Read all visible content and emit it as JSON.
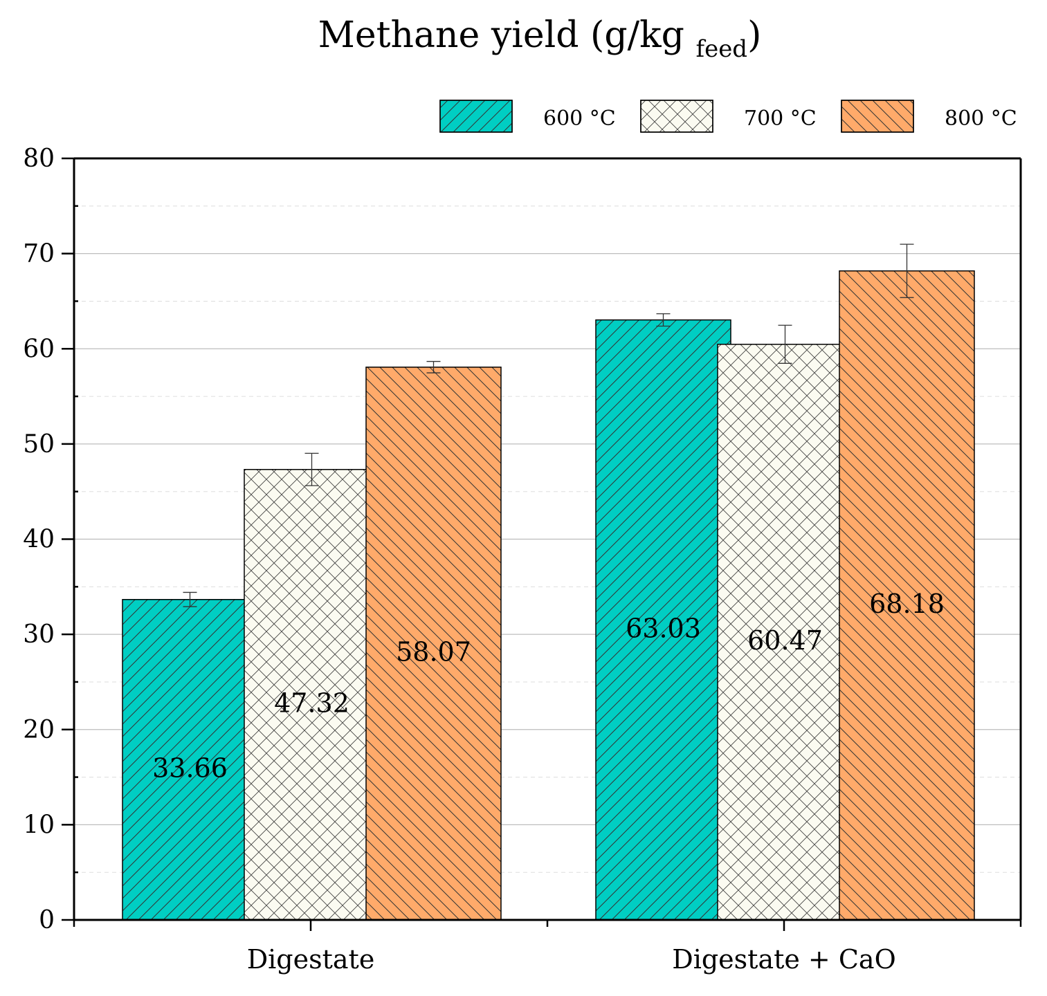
{
  "chart_data": {
    "type": "bar",
    "title": "Methane yield (g/kg ",
    "title_subscript": "feed",
    "title_close": ")",
    "xlabel": "",
    "ylabel": "",
    "ylim": [
      0,
      80
    ],
    "y_major_ticks": [
      0,
      10,
      20,
      30,
      40,
      50,
      60,
      70,
      80
    ],
    "y_minor_step": 5,
    "grid": true,
    "legend_position": "top-right",
    "categories": [
      "Digestate",
      "Digestate + CaO"
    ],
    "series": [
      {
        "name": "600 °C",
        "values": [
          33.66,
          63.03
        ],
        "errors": [
          0.75,
          0.65
        ],
        "labels": [
          "33.66",
          "63.03"
        ],
        "color": "#00CEC3",
        "pattern": "diagonal-forward"
      },
      {
        "name": "700 °C",
        "values": [
          47.32,
          60.47
        ],
        "errors": [
          1.7,
          2.0
        ],
        "labels": [
          "47.32",
          "60.47"
        ],
        "color": "#FBFBF1",
        "pattern": "crosshatch"
      },
      {
        "name": "800 °C",
        "values": [
          58.07,
          68.18
        ],
        "errors": [
          0.6,
          2.8
        ],
        "labels": [
          "58.07",
          "68.18"
        ],
        "color": "#FFAA6A",
        "pattern": "diagonal-back"
      }
    ]
  }
}
